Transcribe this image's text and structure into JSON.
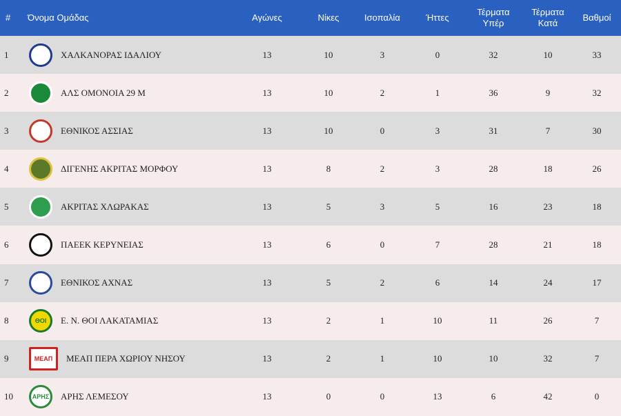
{
  "headers": {
    "rank": "#",
    "team": "Όνομα Ομάδας",
    "played": "Αγώνες",
    "wins": "Νίκες",
    "draws": "Ισοπαλία",
    "losses": "Ήττες",
    "goals_for_1": "Τέρματα",
    "goals_for_2": "Υπέρ",
    "goals_against_1": "Τέρματα",
    "goals_against_2": "Κατά",
    "points": "Βαθμοί"
  },
  "rows": [
    {
      "rank": "1",
      "team": "ΧΑΛΚΑΝΟΡΑΣ ΙΔΑΛΙΟΥ",
      "played": "13",
      "wins": "10",
      "draws": "3",
      "losses": "0",
      "gf": "32",
      "ga": "10",
      "pts": "33",
      "logo_colors": [
        "#ffffff",
        "#1f3c8c"
      ]
    },
    {
      "rank": "2",
      "team": "ΑΛΣ ΟΜΟΝΟΙΑ 29 Μ",
      "played": "13",
      "wins": "10",
      "draws": "2",
      "losses": "1",
      "gf": "36",
      "ga": "9",
      "pts": "32",
      "logo_colors": [
        "#1a8a3a",
        "#ffffff"
      ]
    },
    {
      "rank": "3",
      "team": "ΕΘΝΙΚΟΣ ΑΣΣΙΑΣ",
      "played": "13",
      "wins": "10",
      "draws": "0",
      "losses": "3",
      "gf": "31",
      "ga": "7",
      "pts": "30",
      "logo_colors": [
        "#ffffff",
        "#c0392b"
      ]
    },
    {
      "rank": "4",
      "team": "ΔΙΓΕΝΗΣ ΑΚΡΙΤΑΣ ΜΟΡΦΟΥ",
      "played": "13",
      "wins": "8",
      "draws": "2",
      "losses": "3",
      "gf": "28",
      "ga": "18",
      "pts": "26",
      "logo_colors": [
        "#5a7a2a",
        "#e0c040"
      ]
    },
    {
      "rank": "5",
      "team": "ΑΚΡΙΤΑΣ ΧΛΩΡΑΚΑΣ",
      "played": "13",
      "wins": "5",
      "draws": "3",
      "losses": "5",
      "gf": "16",
      "ga": "23",
      "pts": "18",
      "logo_colors": [
        "#2e9e4e",
        "#ffffff"
      ]
    },
    {
      "rank": "6",
      "team": "ΠΑΕΕΚ ΚΕΡΥΝΕΙΑΣ",
      "played": "13",
      "wins": "6",
      "draws": "0",
      "losses": "7",
      "gf": "28",
      "ga": "21",
      "pts": "18",
      "logo_colors": [
        "#ffffff",
        "#111111"
      ]
    },
    {
      "rank": "7",
      "team": "ΕΘΝΙΚΟΣ ΑΧΝΑΣ",
      "played": "13",
      "wins": "5",
      "draws": "2",
      "losses": "6",
      "gf": "14",
      "ga": "24",
      "pts": "17",
      "logo_colors": [
        "#ffffff",
        "#2a4a9a"
      ]
    },
    {
      "rank": "8",
      "team": "Ε. Ν. ΘΟΙ ΛΑΚΑΤΑΜΙΑΣ",
      "played": "13",
      "wins": "2",
      "draws": "1",
      "losses": "10",
      "gf": "11",
      "ga": "26",
      "pts": "7",
      "logo_colors": [
        "#f0d800",
        "#1a7a2a"
      ]
    },
    {
      "rank": "9",
      "team": "ΜΕΑΠ ΠΕΡΑ ΧΩΡΙΟΥ ΝΗΣΟΥ",
      "played": "13",
      "wins": "2",
      "draws": "1",
      "losses": "10",
      "gf": "10",
      "ga": "32",
      "pts": "7",
      "logo_colors": [
        "#ffffff",
        "#d02020"
      ]
    },
    {
      "rank": "10",
      "team": "ΑΡΗΣ ΛΕΜΕΣΟΥ",
      "played": "13",
      "wins": "0",
      "draws": "0",
      "losses": "13",
      "gf": "6",
      "ga": "42",
      "pts": "0",
      "logo_colors": [
        "#ffffff",
        "#2a8a3a"
      ]
    }
  ],
  "logo_lettering": [
    "",
    "",
    "",
    "",
    "",
    "",
    "",
    "ΘΟΙ",
    "ΜΕΑΠ",
    "ΑΡΗΣ"
  ]
}
